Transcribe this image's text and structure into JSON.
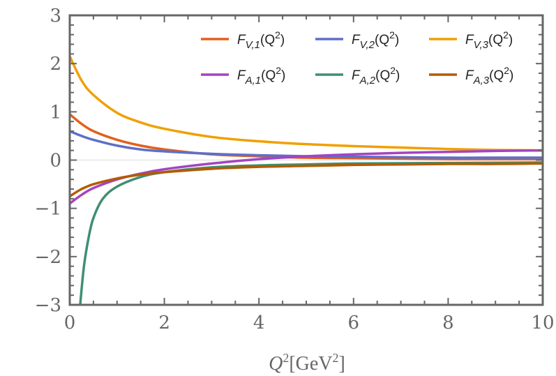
{
  "chart_data": {
    "type": "line",
    "title": "",
    "xlabel": {
      "main": "Q",
      "exp": "2",
      "unit_open": "[GeV",
      "unit_exp": "2",
      "unit_close": "]"
    },
    "ylabel": "",
    "xlim": [
      0,
      10
    ],
    "ylim": [
      -3,
      3
    ],
    "x_ticks": [
      "0",
      "2",
      "4",
      "6",
      "8",
      "10"
    ],
    "y_ticks": [
      "−3",
      "−2",
      "−1",
      "0",
      "1",
      "2",
      "3"
    ],
    "grid": "zero line only",
    "legend_placement": "top-right",
    "series": [
      {
        "name": {
          "symbol": "F",
          "sub": "V,1",
          "arg": "(Q",
          "exp": "2",
          "close": ")"
        },
        "color": "#e2601c",
        "points": [
          [
            0,
            0.95
          ],
          [
            0.25,
            0.75
          ],
          [
            0.5,
            0.6
          ],
          [
            1,
            0.42
          ],
          [
            1.5,
            0.3
          ],
          [
            2,
            0.22
          ],
          [
            3,
            0.12
          ],
          [
            4,
            0.08
          ],
          [
            5,
            0.05
          ],
          [
            6,
            0.04
          ],
          [
            7,
            0.03
          ],
          [
            8,
            0.02
          ],
          [
            9,
            0.02
          ],
          [
            10,
            0.02
          ]
        ]
      },
      {
        "name": {
          "symbol": "F",
          "sub": "V,2",
          "arg": "(Q",
          "exp": "2",
          "close": ")"
        },
        "color": "#5e6fc8",
        "points": [
          [
            0,
            0.6
          ],
          [
            0.25,
            0.5
          ],
          [
            0.5,
            0.42
          ],
          [
            1,
            0.3
          ],
          [
            1.5,
            0.22
          ],
          [
            2,
            0.18
          ],
          [
            3,
            0.13
          ],
          [
            4,
            0.1
          ],
          [
            5,
            0.08
          ],
          [
            6,
            0.07
          ],
          [
            7,
            0.06
          ],
          [
            8,
            0.05
          ],
          [
            9,
            0.05
          ],
          [
            10,
            0.05
          ]
        ]
      },
      {
        "name": {
          "symbol": "F",
          "sub": "V,3",
          "arg": "(Q",
          "exp": "2",
          "close": ")"
        },
        "color": "#f0a000",
        "points": [
          [
            0,
            2.15
          ],
          [
            0.25,
            1.65
          ],
          [
            0.5,
            1.35
          ],
          [
            1,
            0.98
          ],
          [
            1.5,
            0.78
          ],
          [
            2,
            0.65
          ],
          [
            3,
            0.48
          ],
          [
            4,
            0.39
          ],
          [
            5,
            0.33
          ],
          [
            6,
            0.29
          ],
          [
            7,
            0.26
          ],
          [
            8,
            0.23
          ],
          [
            9,
            0.21
          ],
          [
            10,
            0.2
          ]
        ]
      },
      {
        "name": {
          "symbol": "F",
          "sub": "A,1",
          "arg": "(Q",
          "exp": "2",
          "close": ")"
        },
        "color": "#a444c0",
        "points": [
          [
            0,
            -0.9
          ],
          [
            0.25,
            -0.72
          ],
          [
            0.5,
            -0.58
          ],
          [
            1,
            -0.4
          ],
          [
            1.5,
            -0.28
          ],
          [
            2,
            -0.19
          ],
          [
            3,
            -0.07
          ],
          [
            4,
            0.02
          ],
          [
            5,
            0.08
          ],
          [
            6,
            0.12
          ],
          [
            7,
            0.15
          ],
          [
            8,
            0.17
          ],
          [
            9,
            0.19
          ],
          [
            10,
            0.2
          ]
        ]
      },
      {
        "name": {
          "symbol": "F",
          "sub": "A,2",
          "arg": "(Q",
          "exp": "2",
          "close": ")"
        },
        "color": "#3f8f70",
        "points": [
          [
            0.22,
            -3
          ],
          [
            0.3,
            -2.2
          ],
          [
            0.4,
            -1.6
          ],
          [
            0.5,
            -1.2
          ],
          [
            0.7,
            -0.8
          ],
          [
            1,
            -0.55
          ],
          [
            1.5,
            -0.35
          ],
          [
            2,
            -0.25
          ],
          [
            3,
            -0.15
          ],
          [
            4,
            -0.11
          ],
          [
            5,
            -0.09
          ],
          [
            6,
            -0.07
          ],
          [
            8,
            -0.06
          ],
          [
            10,
            -0.05
          ]
        ]
      },
      {
        "name": {
          "symbol": "F",
          "sub": "A,3",
          "arg": "(Q",
          "exp": "2",
          "close": ")"
        },
        "color": "#b45a00",
        "points": [
          [
            0,
            -0.75
          ],
          [
            0.25,
            -0.6
          ],
          [
            0.5,
            -0.5
          ],
          [
            1,
            -0.38
          ],
          [
            1.5,
            -0.3
          ],
          [
            2,
            -0.25
          ],
          [
            3,
            -0.18
          ],
          [
            4,
            -0.14
          ],
          [
            5,
            -0.12
          ],
          [
            6,
            -0.1
          ],
          [
            7,
            -0.09
          ],
          [
            8,
            -0.08
          ],
          [
            9,
            -0.08
          ],
          [
            10,
            -0.07
          ]
        ]
      }
    ]
  }
}
